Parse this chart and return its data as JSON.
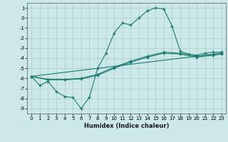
{
  "xlabel": "Humidex (Indice chaleur)",
  "xlim": [
    -0.5,
    23.5
  ],
  "ylim": [
    -9.5,
    1.5
  ],
  "xticks": [
    0,
    1,
    2,
    3,
    4,
    5,
    6,
    7,
    8,
    9,
    10,
    11,
    12,
    13,
    14,
    15,
    16,
    17,
    18,
    19,
    20,
    21,
    22,
    23
  ],
  "yticks": [
    1,
    0,
    -1,
    -2,
    -3,
    -4,
    -5,
    -6,
    -7,
    -8,
    -9
  ],
  "background_color": "#cce8e8",
  "grid_color": "#aacccc",
  "line_color": "#1a7a6e",
  "lines": [
    {
      "x": [
        0,
        1,
        2,
        3,
        4,
        5,
        6,
        7,
        8,
        9,
        10,
        11,
        12,
        13,
        14,
        15,
        16,
        17,
        18,
        19,
        20,
        21,
        22,
        23
      ],
      "y": [
        -5.8,
        -6.7,
        -6.3,
        -7.3,
        -7.8,
        -7.9,
        -9.0,
        -7.9,
        -5.0,
        -3.5,
        -1.5,
        -0.5,
        -0.7,
        0.0,
        0.7,
        1.0,
        0.9,
        -0.8,
        -3.3,
        -3.6,
        -3.7,
        -3.5,
        -3.4,
        -3.4
      ]
    },
    {
      "x": [
        0,
        2,
        4,
        6,
        8,
        10,
        12,
        14,
        16,
        18,
        20,
        22,
        23
      ],
      "y": [
        -5.8,
        -6.1,
        -6.1,
        -6.0,
        -5.6,
        -4.9,
        -4.3,
        -3.8,
        -3.4,
        -3.5,
        -3.8,
        -3.6,
        -3.5
      ]
    },
    {
      "x": [
        0,
        2,
        4,
        6,
        8,
        10,
        12,
        14,
        16,
        18,
        20,
        22,
        23
      ],
      "y": [
        -5.8,
        -6.15,
        -6.15,
        -6.05,
        -5.7,
        -5.0,
        -4.4,
        -3.9,
        -3.5,
        -3.6,
        -3.9,
        -3.7,
        -3.6
      ]
    },
    {
      "x": [
        0,
        23
      ],
      "y": [
        -5.8,
        -3.5
      ]
    }
  ]
}
